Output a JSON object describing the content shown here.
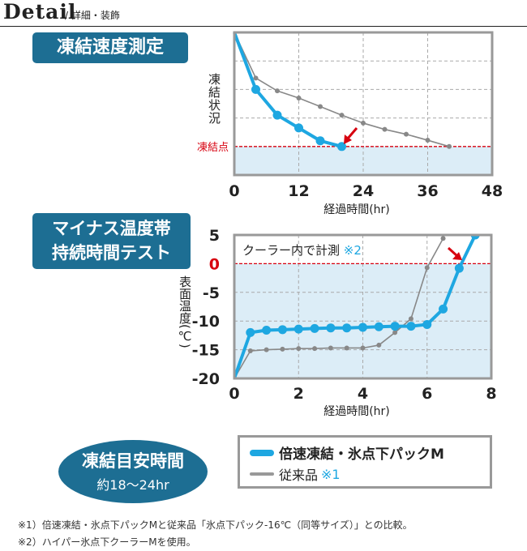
{
  "header": {
    "title": "Detail",
    "subtitle": "/ 詳細・装飾"
  },
  "section1": {
    "badge": "凍結速度測定"
  },
  "section2": {
    "badge_line1": "マイナス温度帯",
    "badge_line2": "持続時間テスト"
  },
  "colors": {
    "badge": "#1d6e93",
    "fast_pack": "#1ea7e1",
    "conventional": "#888888",
    "freeze_line": "#d7000f",
    "cold_zone": "#dcedf7"
  },
  "chart_data": [
    {
      "type": "line",
      "xlabel": "経過時間(hr)",
      "ylabel": "凍結状況",
      "xlim": [
        0,
        48
      ],
      "xticks": [
        "0",
        "12",
        "24",
        "36",
        "48"
      ],
      "ylim": [
        0,
        5
      ],
      "y_tick_labels_shown": false,
      "reference_line": {
        "label": "凍結点",
        "y": 1
      },
      "grid": true,
      "series": [
        {
          "name": "倍速凍結・氷点下パックM",
          "x": [
            0,
            4,
            8,
            12,
            16,
            20
          ],
          "y": [
            5,
            3.0,
            2.1,
            1.65,
            1.2,
            1.0
          ]
        },
        {
          "name": "従来品",
          "x": [
            0,
            4,
            8,
            12,
            16,
            20,
            24,
            28,
            32,
            36,
            40
          ],
          "y": [
            5,
            3.4,
            2.95,
            2.7,
            2.4,
            2.1,
            1.82,
            1.6,
            1.43,
            1.22,
            1.0
          ]
        }
      ]
    },
    {
      "type": "line",
      "xlabel": "経過時間(hr)",
      "ylabel": "表面温度(℃)",
      "xlim": [
        0,
        8
      ],
      "ylim": [
        -20,
        5
      ],
      "xticks": [
        "0",
        "2",
        "4",
        "6",
        "8"
      ],
      "yticks": [
        "5",
        "0",
        "-5",
        "-10",
        "-15",
        "-20"
      ],
      "reference_line": {
        "y": 0
      },
      "annotation": "クーラー内で計測",
      "annotation_note": "※2",
      "grid": true,
      "series": [
        {
          "name": "倍速凍結・氷点下パックM",
          "x": [
            0,
            0.5,
            1,
            1.5,
            2,
            2.5,
            3,
            3.5,
            4,
            4.5,
            5,
            5.5,
            6,
            6.5,
            7,
            7.5
          ],
          "y": [
            -20,
            -12,
            -11.6,
            -11.5,
            -11.4,
            -11.3,
            -11.2,
            -11.2,
            -11.1,
            -11.0,
            -10.9,
            -10.9,
            -10.6,
            -7.9,
            -0.8,
            5
          ]
        },
        {
          "name": "従来品",
          "x": [
            0,
            0.5,
            1,
            1.5,
            2,
            2.5,
            3,
            3.5,
            4,
            4.5,
            5,
            5.5,
            6,
            6.5
          ],
          "y": [
            -20,
            -15.2,
            -15.0,
            -14.9,
            -14.8,
            -14.8,
            -14.7,
            -14.7,
            -14.7,
            -14.2,
            -12.0,
            -9.6,
            -0.7,
            4.4
          ]
        }
      ]
    }
  ],
  "badge_time": {
    "title": "凍結目安時間",
    "value": "約18〜24hr"
  },
  "legend": {
    "fast": "倍速凍結・氷点下パックM",
    "conventional": "従来品",
    "conventional_note": "※1"
  },
  "footnotes": [
    "※1）倍速凍結・氷点下パックMと従来品「氷点下パック-16℃（同等サイズ）」との比較。",
    "※2）ハイパー氷点下クーラーMを使用。"
  ]
}
